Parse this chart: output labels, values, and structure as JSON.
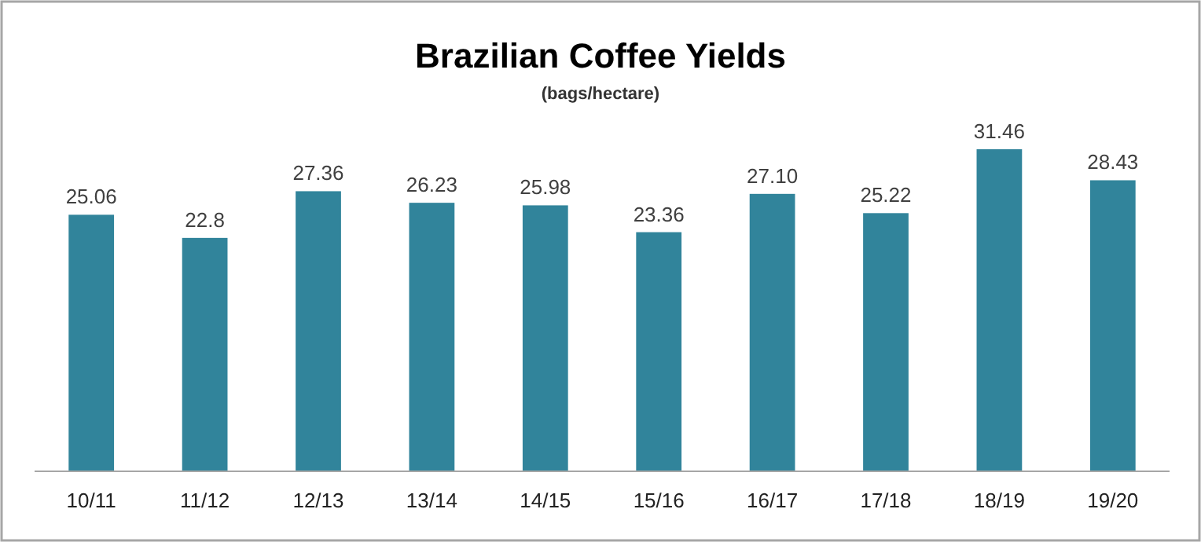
{
  "chart_data": {
    "type": "bar",
    "title": "Brazilian Coffee Yields",
    "subtitle": "(bags/hectare)",
    "relative": false,
    "categories": [
      "10/11",
      "11/12",
      "12/13",
      "13/14",
      "14/15",
      "15/16",
      "16/17",
      "17/18",
      "18/19",
      "19/20"
    ],
    "values": [
      25.06,
      22.8,
      27.36,
      26.23,
      25.98,
      23.36,
      27.1,
      25.22,
      31.46,
      28.43
    ],
    "value_labels": [
      "25.06",
      "22.8",
      "27.36",
      "26.23",
      "25.98",
      "23.36",
      "27.10",
      "25.22",
      "31.46",
      "28.43"
    ],
    "color": "#31849b"
  }
}
